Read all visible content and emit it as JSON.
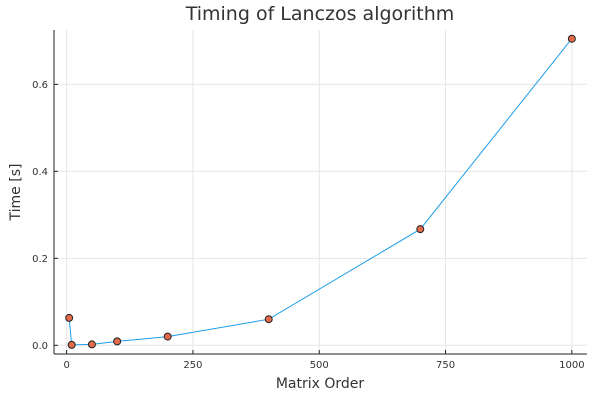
{
  "chart_data": {
    "type": "line",
    "title": "Timing of Lanczos algorithm",
    "xlabel": "Matrix Order",
    "ylabel": "Time [s]",
    "xlim": [
      -25,
      1030
    ],
    "ylim": [
      -0.02,
      0.725
    ],
    "xticks": [
      0,
      250,
      500,
      750,
      1000
    ],
    "xtick_labels": [
      "0",
      "250",
      "500",
      "750",
      "1000"
    ],
    "yticks": [
      0.0,
      0.2,
      0.4,
      0.6
    ],
    "ytick_labels": [
      "0.0",
      "0.2",
      "0.4",
      "0.6"
    ],
    "grid": true,
    "legend": "none",
    "series": [
      {
        "x": [
          5,
          10,
          50,
          100,
          200,
          400,
          700,
          1000
        ],
        "y": [
          0.063,
          0.001,
          0.002,
          0.009,
          0.02,
          0.06,
          0.267,
          0.705
        ],
        "line_color": "#1f9ee8",
        "marker_color": "#e26a4b",
        "marker_edge": "#222222"
      }
    ]
  }
}
